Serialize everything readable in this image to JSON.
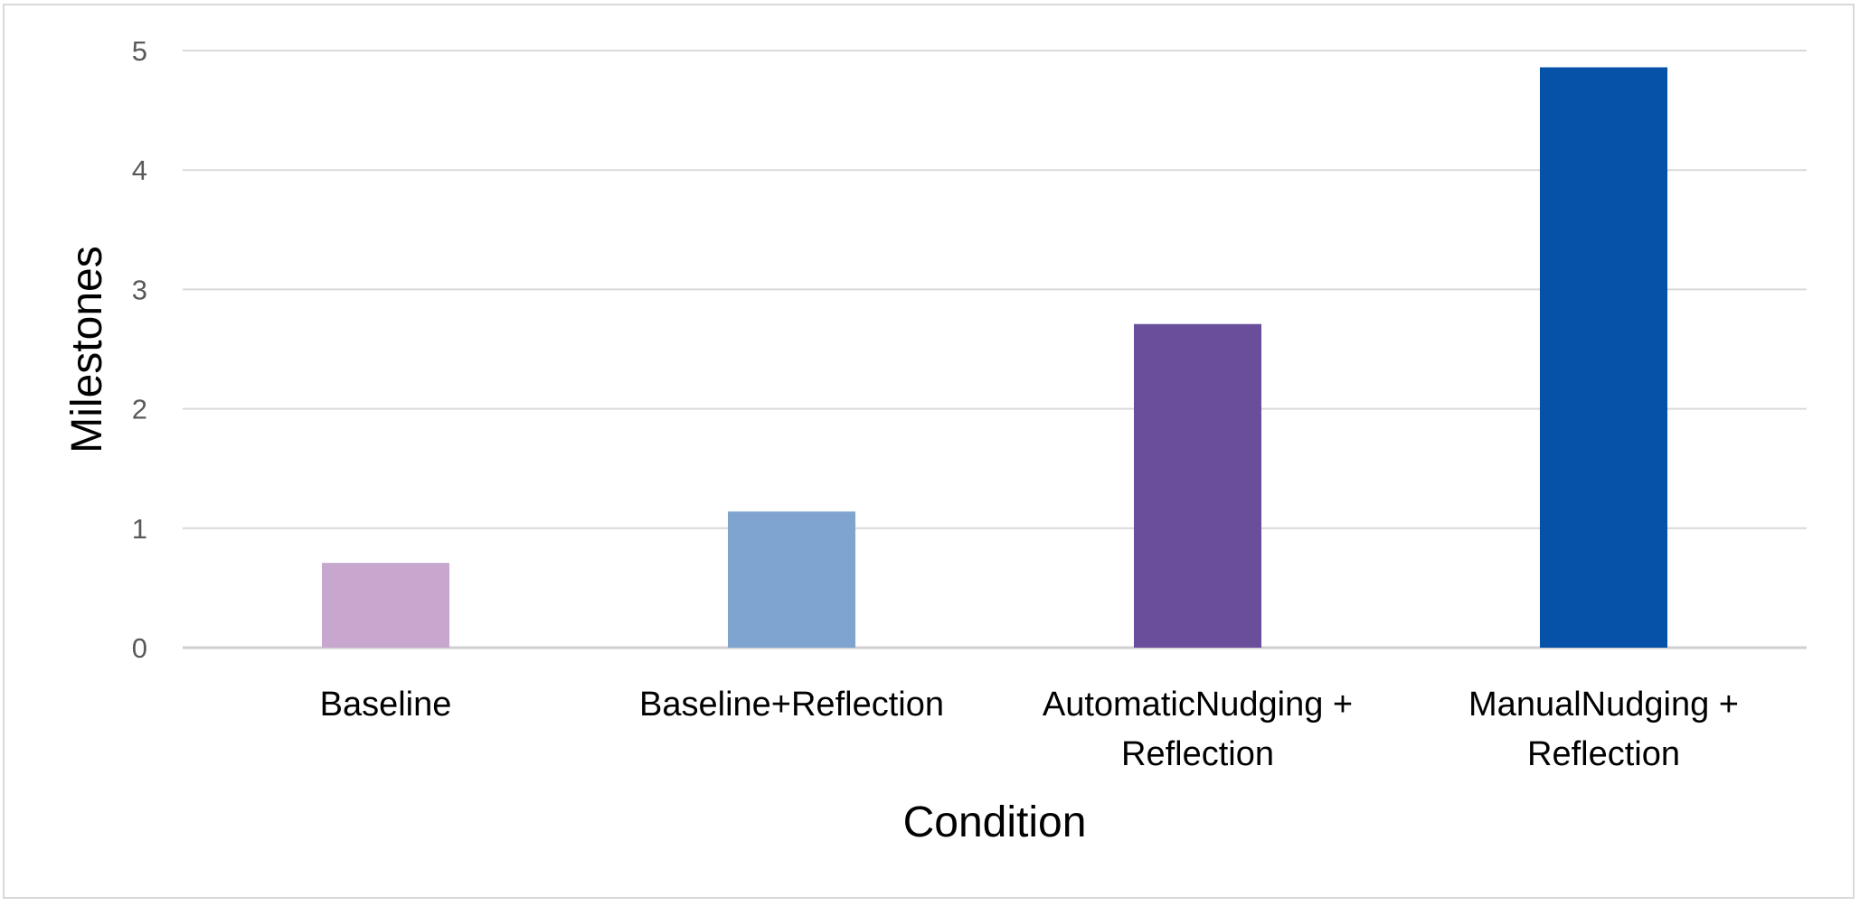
{
  "chart_data": {
    "type": "bar",
    "title": "",
    "xlabel": "Condition",
    "ylabel": "Milestones",
    "ylim": [
      0,
      5
    ],
    "yticks": [
      0,
      1,
      2,
      3,
      4,
      5
    ],
    "grid": true,
    "legend": "none",
    "categories": [
      [
        "Baseline"
      ],
      [
        "Baseline+Reflection"
      ],
      [
        "AutomaticNudging +",
        "Reflection"
      ],
      [
        "ManualNudging +",
        "Reflection"
      ]
    ],
    "values": [
      0.71,
      1.14,
      2.71,
      4.86
    ],
    "colors": [
      "#c8a7cf",
      "#7fa4cf",
      "#6a4e9c",
      "#0652a8"
    ]
  }
}
